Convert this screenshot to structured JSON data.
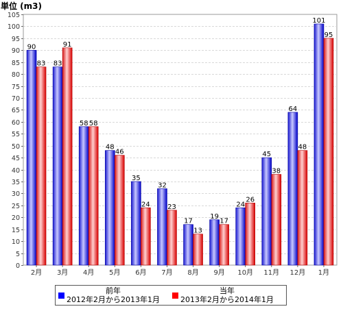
{
  "chart_data": {
    "type": "bar",
    "unit_label": "単位 (m3)",
    "categories": [
      "2月",
      "3月",
      "4月",
      "5月",
      "6月",
      "7月",
      "8月",
      "9月",
      "10月",
      "11月",
      "12月",
      "1月"
    ],
    "series": [
      {
        "name": "前年",
        "period": "2012年2月から2013年1月",
        "color": "#0000ff",
        "values": [
          90,
          83,
          58,
          48,
          35,
          32,
          17,
          19,
          24,
          45,
          64,
          101
        ]
      },
      {
        "name": "当年",
        "period": "2013年2月から2014年1月",
        "color": "#ff0000",
        "values": [
          83,
          91,
          58,
          46,
          24,
          23,
          13,
          17,
          26,
          38,
          48,
          95
        ]
      }
    ],
    "ylim": [
      0,
      105
    ],
    "ytick_step": 5,
    "grid": true,
    "data_labels": true,
    "legend_position": "bottom"
  }
}
